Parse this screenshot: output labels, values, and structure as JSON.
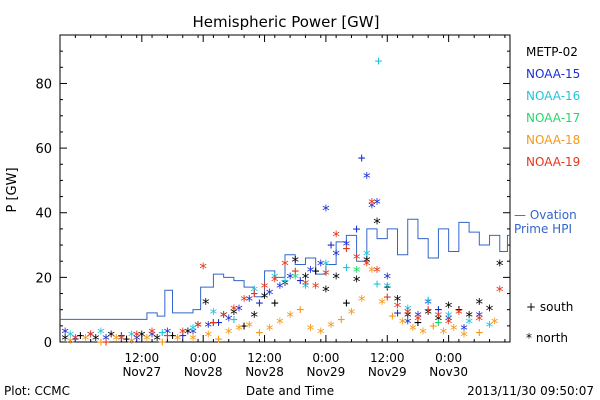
{
  "chart_data": {
    "type": "scatter",
    "title": "Hemispheric Power [GW]",
    "ylabel": "P [GW]",
    "xlabel": "Date and Time",
    "footer_left": "Plot: CCMC",
    "footer_right": "2013/11/30 09:50:07",
    "ylim": [
      0,
      95
    ],
    "y_ticks": [
      0,
      20,
      40,
      60,
      80
    ],
    "x_range_hours": [
      -16,
      72
    ],
    "x_ticks": [
      {
        "time": "12:00",
        "date": "Nov27"
      },
      {
        "time": "0:00",
        "date": "Nov28"
      },
      {
        "time": "12:00",
        "date": "Nov28"
      },
      {
        "time": "0:00",
        "date": "Nov29"
      },
      {
        "time": "12:00",
        "date": "Nov29"
      },
      {
        "time": "0:00",
        "date": "Nov30"
      }
    ],
    "legend": [
      {
        "name": "METP-02",
        "color": "#000000"
      },
      {
        "name": "NOAA-15",
        "color": "#1a2fd6"
      },
      {
        "name": "NOAA-16",
        "color": "#22c4dd"
      },
      {
        "name": "NOAA-17",
        "color": "#22d86a"
      },
      {
        "name": "NOAA-18",
        "color": "#f39a1a"
      },
      {
        "name": "NOAA-19",
        "color": "#e8351a"
      }
    ],
    "ovation_label_1": "— Ovation",
    "ovation_label_2": "Prime HPI",
    "ovation_color": "#3366cc",
    "marker_south_label": "+ south",
    "marker_north_label": "* north",
    "ovation_prime_hpi": [
      {
        "x": -16,
        "y": 7
      },
      {
        "x": 0.5,
        "y": 7
      },
      {
        "x": 1,
        "y": 9
      },
      {
        "x": 3,
        "y": 8
      },
      {
        "x": 4.5,
        "y": 16
      },
      {
        "x": 6,
        "y": 9
      },
      {
        "x": 10,
        "y": 10
      },
      {
        "x": 11.5,
        "y": 17
      },
      {
        "x": 14,
        "y": 21
      },
      {
        "x": 16,
        "y": 20
      },
      {
        "x": 18,
        "y": 19
      },
      {
        "x": 20,
        "y": 17
      },
      {
        "x": 22,
        "y": 14
      },
      {
        "x": 24,
        "y": 22
      },
      {
        "x": 26,
        "y": 20
      },
      {
        "x": 28,
        "y": 27
      },
      {
        "x": 30,
        "y": 24
      },
      {
        "x": 32,
        "y": 26
      },
      {
        "x": 34,
        "y": 21
      },
      {
        "x": 36,
        "y": 24
      },
      {
        "x": 38,
        "y": 31
      },
      {
        "x": 40,
        "y": 33
      },
      {
        "x": 42,
        "y": 25
      },
      {
        "x": 44,
        "y": 35
      },
      {
        "x": 46,
        "y": 32
      },
      {
        "x": 48,
        "y": 35
      },
      {
        "x": 50,
        "y": 27
      },
      {
        "x": 52,
        "y": 38
      },
      {
        "x": 54,
        "y": 32
      },
      {
        "x": 56,
        "y": 26
      },
      {
        "x": 58,
        "y": 35
      },
      {
        "x": 60,
        "y": 28
      },
      {
        "x": 62,
        "y": 37
      },
      {
        "x": 64,
        "y": 34
      },
      {
        "x": 66,
        "y": 30
      },
      {
        "x": 68,
        "y": 33
      },
      {
        "x": 70,
        "y": 28
      },
      {
        "x": 71.5,
        "y": 33
      },
      {
        "x": 72,
        "y": 33
      }
    ],
    "series": [
      {
        "name": "METP-02",
        "color": "#000000",
        "points": [
          [
            -15,
            1,
            "north"
          ],
          [
            -12,
            2,
            "south"
          ],
          [
            -9,
            1,
            "north"
          ],
          [
            -6,
            2,
            "north"
          ],
          [
            -3,
            1,
            "south"
          ],
          [
            0,
            2,
            "north"
          ],
          [
            3,
            1,
            "north"
          ],
          [
            6,
            2,
            "south"
          ],
          [
            9,
            3,
            "north"
          ],
          [
            11,
            5,
            "north"
          ],
          [
            12.5,
            12,
            "north"
          ],
          [
            14,
            6,
            "south"
          ],
          [
            16,
            8,
            "north"
          ],
          [
            18,
            9,
            "north"
          ],
          [
            20,
            5,
            "south"
          ],
          [
            22,
            8,
            "north"
          ],
          [
            24,
            14,
            "north"
          ],
          [
            26,
            12,
            "south"
          ],
          [
            28,
            18,
            "north"
          ],
          [
            30,
            25,
            "north"
          ],
          [
            32,
            20,
            "north"
          ],
          [
            34,
            22,
            "south"
          ],
          [
            36,
            16,
            "north"
          ],
          [
            38,
            20,
            "north"
          ],
          [
            40,
            12,
            "south"
          ],
          [
            42,
            19,
            "north"
          ],
          [
            44,
            25,
            "north"
          ],
          [
            46,
            37,
            "north"
          ],
          [
            48,
            17,
            "south"
          ],
          [
            50,
            13,
            "north"
          ],
          [
            52,
            8,
            "north"
          ],
          [
            54,
            6,
            "south"
          ],
          [
            56,
            9,
            "north"
          ],
          [
            58,
            7,
            "north"
          ],
          [
            60,
            11,
            "north"
          ],
          [
            62,
            10,
            "south"
          ],
          [
            64,
            8,
            "north"
          ],
          [
            66,
            12,
            "north"
          ],
          [
            68,
            10,
            "north"
          ],
          [
            70,
            24,
            "north"
          ]
        ]
      },
      {
        "name": "NOAA-15",
        "color": "#1a2fd6",
        "points": [
          [
            -15,
            3,
            "north"
          ],
          [
            -13,
            1,
            "south"
          ],
          [
            -10,
            2,
            "north"
          ],
          [
            -7,
            1,
            "north"
          ],
          [
            -4,
            2,
            "south"
          ],
          [
            -1,
            1,
            "north"
          ],
          [
            2,
            2,
            "north"
          ],
          [
            5,
            3,
            "north"
          ],
          [
            8,
            2,
            "south"
          ],
          [
            10,
            3,
            "north"
          ],
          [
            13,
            5,
            "north"
          ],
          [
            15,
            6,
            "south"
          ],
          [
            17,
            7,
            "north"
          ],
          [
            19,
            10,
            "north"
          ],
          [
            21,
            13,
            "north"
          ],
          [
            23,
            12,
            "south"
          ],
          [
            25,
            15,
            "north"
          ],
          [
            27,
            17,
            "north"
          ],
          [
            29,
            20,
            "north"
          ],
          [
            31,
            19,
            "south"
          ],
          [
            33,
            22,
            "north"
          ],
          [
            35,
            24,
            "north"
          ],
          [
            36,
            41,
            "north"
          ],
          [
            37,
            30,
            "south"
          ],
          [
            38,
            27,
            "north"
          ],
          [
            40,
            30,
            "north"
          ],
          [
            42,
            35,
            "south"
          ],
          [
            43,
            57,
            "south"
          ],
          [
            44,
            51,
            "north"
          ],
          [
            45,
            42,
            "north"
          ],
          [
            46,
            43,
            "north"
          ],
          [
            48,
            20,
            "north"
          ],
          [
            50,
            9,
            "south"
          ],
          [
            52,
            6,
            "north"
          ],
          [
            54,
            8,
            "north"
          ],
          [
            56,
            12,
            "north"
          ],
          [
            58,
            10,
            "south"
          ],
          [
            60,
            7,
            "north"
          ],
          [
            63,
            4,
            "north"
          ],
          [
            66,
            8,
            "north"
          ]
        ]
      },
      {
        "name": "NOAA-16",
        "color": "#22c4dd",
        "points": [
          [
            -14,
            2,
            "north"
          ],
          [
            -8,
            3,
            "north"
          ],
          [
            -2,
            2,
            "north"
          ],
          [
            4,
            3,
            "south"
          ],
          [
            10,
            4,
            "north"
          ],
          [
            14,
            9,
            "north"
          ],
          [
            18,
            7,
            "south"
          ],
          [
            22,
            16,
            "north"
          ],
          [
            26,
            20,
            "north"
          ],
          [
            28,
            19,
            "south"
          ],
          [
            32,
            17,
            "north"
          ],
          [
            36,
            24,
            "north"
          ],
          [
            40,
            23,
            "south"
          ],
          [
            44,
            27,
            "north"
          ],
          [
            46,
            18,
            "south"
          ],
          [
            46.3,
            87,
            "south"
          ],
          [
            48,
            17,
            "north"
          ],
          [
            52,
            10,
            "north"
          ],
          [
            56,
            13,
            "south"
          ],
          [
            60,
            8,
            "north"
          ],
          [
            64,
            6,
            "north"
          ],
          [
            68,
            5,
            "north"
          ]
        ]
      },
      {
        "name": "NOAA-17",
        "color": "#22d86a",
        "points": [
          [
            30,
            20,
            "north"
          ],
          [
            42,
            22,
            "north"
          ],
          [
            58,
            6,
            "south"
          ]
        ]
      },
      {
        "name": "NOAA-18",
        "color": "#f39a1a",
        "points": [
          [
            -14,
            0,
            "north"
          ],
          [
            -11,
            1,
            "north"
          ],
          [
            -8,
            0,
            "south"
          ],
          [
            -5,
            1,
            "north"
          ],
          [
            -2,
            0,
            "north"
          ],
          [
            1,
            1,
            "north"
          ],
          [
            4,
            0,
            "south"
          ],
          [
            7,
            1,
            "north"
          ],
          [
            10,
            1,
            "north"
          ],
          [
            13,
            2,
            "north"
          ],
          [
            15,
            1,
            "south"
          ],
          [
            17,
            3,
            "north"
          ],
          [
            19,
            4,
            "north"
          ],
          [
            21,
            5,
            "north"
          ],
          [
            23,
            3,
            "south"
          ],
          [
            25,
            4,
            "north"
          ],
          [
            27,
            6,
            "north"
          ],
          [
            29,
            8,
            "north"
          ],
          [
            31,
            10,
            "south"
          ],
          [
            33,
            4,
            "north"
          ],
          [
            35,
            3,
            "north"
          ],
          [
            37,
            5,
            "north"
          ],
          [
            39,
            7,
            "south"
          ],
          [
            41,
            9,
            "north"
          ],
          [
            43,
            13,
            "north"
          ],
          [
            45,
            22,
            "north"
          ],
          [
            47,
            12,
            "north"
          ],
          [
            49,
            8,
            "south"
          ],
          [
            51,
            6,
            "north"
          ],
          [
            53,
            4,
            "north"
          ],
          [
            55,
            3,
            "north"
          ],
          [
            57,
            5,
            "south"
          ],
          [
            59,
            3,
            "north"
          ],
          [
            61,
            4,
            "north"
          ],
          [
            63,
            2,
            "north"
          ],
          [
            66,
            3,
            "south"
          ],
          [
            69,
            6,
            "north"
          ]
        ]
      },
      {
        "name": "NOAA-19",
        "color": "#e8351a",
        "points": [
          [
            -13,
            1,
            "north"
          ],
          [
            -10,
            2,
            "north"
          ],
          [
            -7,
            0,
            "south"
          ],
          [
            -4,
            1,
            "north"
          ],
          [
            -1,
            2,
            "north"
          ],
          [
            2,
            3,
            "north"
          ],
          [
            5,
            2,
            "south"
          ],
          [
            8,
            3,
            "north"
          ],
          [
            11,
            5,
            "north"
          ],
          [
            12,
            23,
            "north"
          ],
          [
            14,
            6,
            "south"
          ],
          [
            16,
            8,
            "north"
          ],
          [
            18,
            10,
            "north"
          ],
          [
            20,
            13,
            "north"
          ],
          [
            22,
            15,
            "south"
          ],
          [
            24,
            17,
            "north"
          ],
          [
            26,
            19,
            "north"
          ],
          [
            28,
            24,
            "north"
          ],
          [
            30,
            22,
            "south"
          ],
          [
            32,
            18,
            "north"
          ],
          [
            34,
            17,
            "north"
          ],
          [
            36,
            21,
            "north"
          ],
          [
            38,
            33,
            "north"
          ],
          [
            40,
            29,
            "south"
          ],
          [
            42,
            26,
            "north"
          ],
          [
            44,
            24,
            "north"
          ],
          [
            45,
            43,
            "north"
          ],
          [
            46,
            22,
            "north"
          ],
          [
            48,
            14,
            "south"
          ],
          [
            50,
            11,
            "north"
          ],
          [
            52,
            9,
            "north"
          ],
          [
            54,
            7,
            "north"
          ],
          [
            56,
            10,
            "south"
          ],
          [
            58,
            8,
            "north"
          ],
          [
            60,
            6,
            "north"
          ],
          [
            62,
            9,
            "north"
          ],
          [
            66,
            7,
            "north"
          ],
          [
            70,
            16,
            "north"
          ]
        ]
      }
    ]
  }
}
